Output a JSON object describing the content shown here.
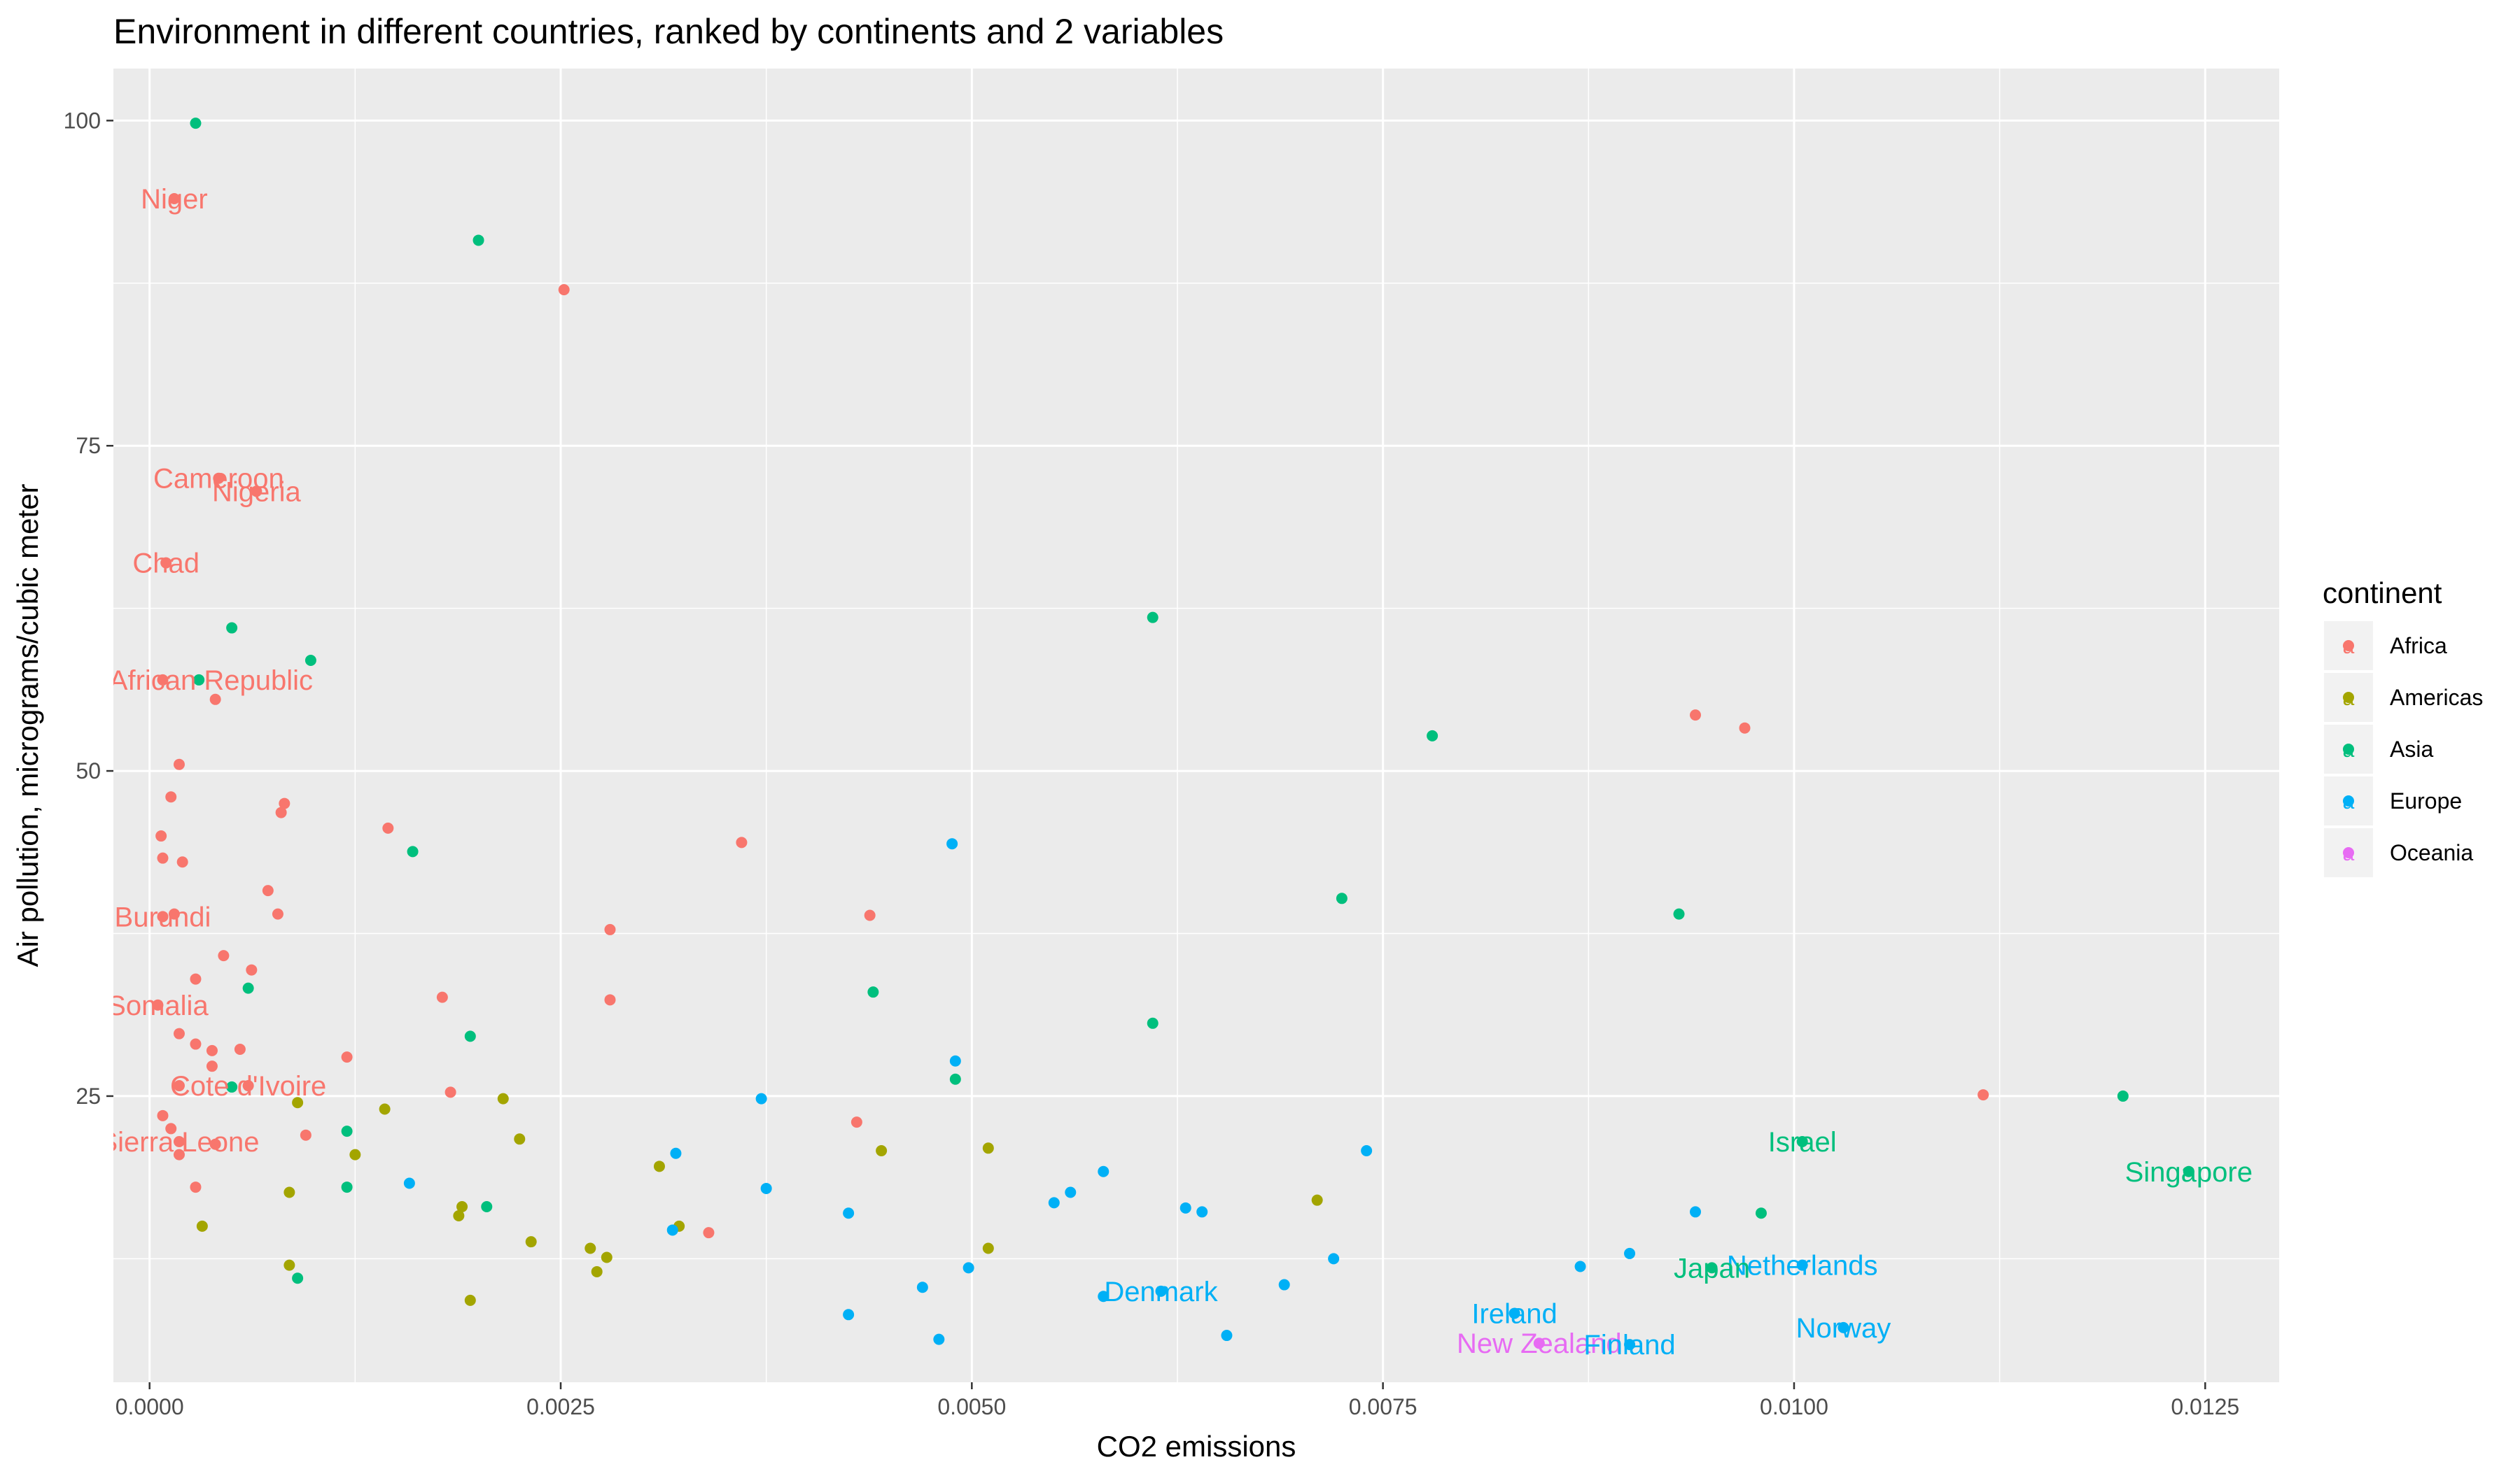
{
  "chart_data": {
    "type": "scatter",
    "title": "Environment in different countries, ranked by continents and 2 variables",
    "xlabel": "CO2 emissions",
    "ylabel": "Air pollution, micrograms/cubic meter",
    "xlim": [
      -0.00022,
      0.01295
    ],
    "ylim": [
      3,
      104
    ],
    "xticks": [
      0,
      0.0025,
      0.005,
      0.0075,
      0.01,
      0.0125
    ],
    "xtick_labels": [
      "0.0000",
      "0.0025",
      "0.0050",
      "0.0075",
      "0.0100",
      "0.0125"
    ],
    "yticks": [
      25,
      50,
      75,
      100
    ],
    "ytick_labels": [
      "25",
      "50",
      "75",
      "100"
    ],
    "grid": true,
    "legend_position": "right",
    "legend_title": "continent",
    "series": [
      {
        "name": "Africa",
        "color": "#F8766D",
        "points": [
          [
            0.00015,
            94
          ],
          [
            0.00252,
            87
          ],
          [
            0.00042,
            72.5
          ],
          [
            0.00065,
            71.5
          ],
          [
            0.0001,
            66
          ],
          [
            8e-05,
            57
          ],
          [
            0.0004,
            55.5
          ],
          [
            0.00018,
            50.5
          ],
          [
            0.00013,
            48
          ],
          [
            0.00082,
            47.5
          ],
          [
            0.0008,
            46.8
          ],
          [
            0.00145,
            45.6
          ],
          [
            7e-05,
            45
          ],
          [
            8e-05,
            43.3
          ],
          [
            0.0002,
            43
          ],
          [
            0.0036,
            44.5
          ],
          [
            0.00072,
            40.8
          ],
          [
            0.00438,
            38.9
          ],
          [
            8e-05,
            38.8
          ],
          [
            0.00015,
            39
          ],
          [
            0.00078,
            39
          ],
          [
            0.0028,
            37.8
          ],
          [
            0.00045,
            35.8
          ],
          [
            0.00062,
            34.7
          ],
          [
            0.00028,
            34
          ],
          [
            0.00178,
            32.6
          ],
          [
            0.0028,
            32.4
          ],
          [
            5e-05,
            32
          ],
          [
            0.00018,
            29.8
          ],
          [
            0.00028,
            29
          ],
          [
            0.00038,
            28.5
          ],
          [
            0.00055,
            28.6
          ],
          [
            0.0012,
            28
          ],
          [
            0.00038,
            27.3
          ],
          [
            0.00018,
            25.8
          ],
          [
            0.0006,
            25.8
          ],
          [
            0.00183,
            25.3
          ],
          [
            8e-05,
            23.5
          ],
          [
            0.0043,
            23
          ],
          [
            0.00013,
            22.5
          ],
          [
            0.00095,
            22
          ],
          [
            0.00018,
            21.5
          ],
          [
            0.0004,
            21.3
          ],
          [
            0.00018,
            20.5
          ],
          [
            0.00028,
            18
          ],
          [
            0.0034,
            14.5
          ],
          [
            0.0094,
            54.3
          ],
          [
            0.0097,
            53.3
          ],
          [
            0.01115,
            25.1
          ]
        ]
      },
      {
        "name": "Americas",
        "color": "#A3A500",
        "points": [
          [
            0.00215,
            24.8
          ],
          [
            0.0009,
            24.5
          ],
          [
            0.00143,
            24
          ],
          [
            0.00225,
            21.7
          ],
          [
            0.00445,
            20.8
          ],
          [
            0.0051,
            21
          ],
          [
            0.00125,
            20.5
          ],
          [
            0.0031,
            19.6
          ],
          [
            0.00085,
            17.6
          ],
          [
            0.0019,
            16.5
          ],
          [
            0.00188,
            15.8
          ],
          [
            0.0071,
            17
          ],
          [
            0.00032,
            15
          ],
          [
            0.00322,
            15
          ],
          [
            0.00232,
            13.8
          ],
          [
            0.00268,
            13.3
          ],
          [
            0.00278,
            12.6
          ],
          [
            0.0051,
            13.3
          ],
          [
            0.00085,
            12
          ],
          [
            0.00272,
            11.5
          ],
          [
            0.00195,
            9.3
          ]
        ]
      },
      {
        "name": "Asia",
        "color": "#00BF7D",
        "points": [
          [
            0.00028,
            99.8
          ],
          [
            0.002,
            90.8
          ],
          [
            0.0061,
            61.8
          ],
          [
            0.0005,
            61
          ],
          [
            0.00098,
            58.5
          ],
          [
            0.0003,
            57
          ],
          [
            0.0078,
            52.7
          ],
          [
            0.0016,
            43.8
          ],
          [
            0.00725,
            40.2
          ],
          [
            0.0093,
            39
          ],
          [
            0.0006,
            33.3
          ],
          [
            0.0044,
            33
          ],
          [
            0.00195,
            29.6
          ],
          [
            0.0061,
            30.6
          ],
          [
            0.0049,
            26.3
          ],
          [
            0.0005,
            25.7
          ],
          [
            0.0012,
            22.3
          ],
          [
            0.0012,
            18
          ],
          [
            0.00205,
            16.5
          ],
          [
            0.0009,
            11
          ],
          [
            0.012,
            25
          ],
          [
            0.0124,
            19.2
          ],
          [
            0.01005,
            21.5
          ],
          [
            0.0098,
            16
          ],
          [
            0.0095,
            11.8
          ]
        ]
      },
      {
        "name": "Europe",
        "color": "#00B0F6",
        "points": [
          [
            0.00488,
            44.4
          ],
          [
            0.0049,
            27.7
          ],
          [
            0.00372,
            24.8
          ],
          [
            0.0032,
            20.6
          ],
          [
            0.0074,
            20.8
          ],
          [
            0.0058,
            19.2
          ],
          [
            0.00158,
            18.3
          ],
          [
            0.00375,
            17.9
          ],
          [
            0.0056,
            17.6
          ],
          [
            0.0055,
            16.8
          ],
          [
            0.0063,
            16.4
          ],
          [
            0.0064,
            16.1
          ],
          [
            0.00425,
            16
          ],
          [
            0.0094,
            16.1
          ],
          [
            0.00318,
            14.7
          ],
          [
            0.0072,
            12.5
          ],
          [
            0.0087,
            11.9
          ],
          [
            0.009,
            12.9
          ],
          [
            0.01005,
            12
          ],
          [
            0.00498,
            11.8
          ],
          [
            0.0047,
            10.3
          ],
          [
            0.0069,
            10.5
          ],
          [
            0.0058,
            9.6
          ],
          [
            0.00615,
            10
          ],
          [
            0.0083,
            8.3
          ],
          [
            0.00425,
            8.2
          ],
          [
            0.0103,
            7.2
          ],
          [
            0.00655,
            6.6
          ],
          [
            0.0048,
            6.3
          ],
          [
            0.009,
            5.9
          ]
        ]
      },
      {
        "name": "Oceania",
        "color": "#E76BF3",
        "points": [
          [
            0.00845,
            6
          ]
        ]
      }
    ],
    "annotations": [
      {
        "text": "Niger",
        "x": 0.00015,
        "y": 94,
        "series": "Africa",
        "anchor": "middle"
      },
      {
        "text": "Cameroon",
        "x": 0.00042,
        "y": 72.5,
        "series": "Africa",
        "anchor": "middle"
      },
      {
        "text": "Nigeria",
        "x": 0.00065,
        "y": 71.5,
        "series": "Africa",
        "anchor": "middle"
      },
      {
        "text": "Chad",
        "x": 0.0001,
        "y": 66,
        "series": "Africa",
        "anchor": "middle"
      },
      {
        "text": "Central African Republic",
        "x": 8e-05,
        "y": 57,
        "series": "Africa",
        "anchor": "middle"
      },
      {
        "text": "Burundi",
        "x": 8e-05,
        "y": 38.8,
        "series": "Africa",
        "anchor": "middle"
      },
      {
        "text": "Somalia",
        "x": 5e-05,
        "y": 32,
        "series": "Africa",
        "anchor": "middle"
      },
      {
        "text": "Cote d'Ivoire",
        "x": 0.0006,
        "y": 25.8,
        "series": "Africa",
        "anchor": "middle"
      },
      {
        "text": "Sierra Leone",
        "x": 0.00018,
        "y": 21.5,
        "series": "Africa",
        "anchor": "middle"
      },
      {
        "text": "Israel",
        "x": 0.01005,
        "y": 21.5,
        "series": "Asia",
        "anchor": "middle"
      },
      {
        "text": "Singapore",
        "x": 0.0124,
        "y": 19.2,
        "series": "Asia",
        "anchor": "middle"
      },
      {
        "text": "Netherlands",
        "x": 0.01005,
        "y": 12,
        "series": "Europe",
        "anchor": "middle"
      },
      {
        "text": "Japan",
        "x": 0.0095,
        "y": 11.8,
        "series": "Asia",
        "anchor": "middle"
      },
      {
        "text": "Denmark",
        "x": 0.00615,
        "y": 10,
        "series": "Europe",
        "anchor": "middle"
      },
      {
        "text": "Ireland",
        "x": 0.0083,
        "y": 8.3,
        "series": "Europe",
        "anchor": "middle"
      },
      {
        "text": "Norway",
        "x": 0.0103,
        "y": 7.2,
        "series": "Europe",
        "anchor": "middle"
      },
      {
        "text": "New Zealand",
        "x": 0.00845,
        "y": 6,
        "series": "Oceania",
        "anchor": "middle"
      },
      {
        "text": "Finland",
        "x": 0.009,
        "y": 5.9,
        "series": "Europe",
        "anchor": "middle"
      }
    ]
  }
}
